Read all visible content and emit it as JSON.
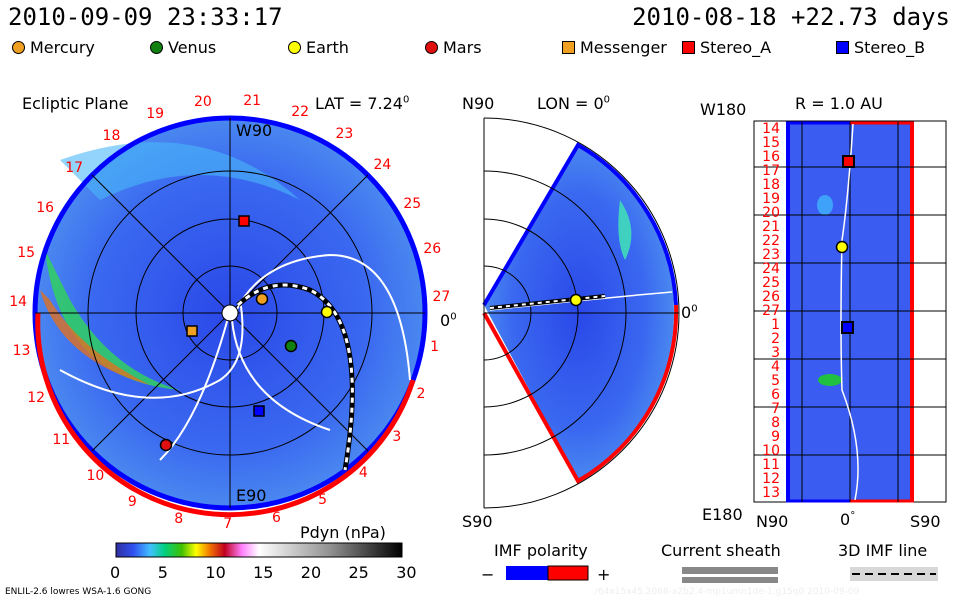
{
  "header": {
    "datetime": "2010-09-09 23:33:17",
    "reference": "2010-08-18 +22.73 days"
  },
  "legend": [
    {
      "label": "Mercury",
      "shape": "circle",
      "color": "#f0a020"
    },
    {
      "label": "Venus",
      "shape": "circle",
      "color": "#108010"
    },
    {
      "label": "Earth",
      "shape": "circle",
      "color": "#ffff00"
    },
    {
      "label": "Mars",
      "shape": "circle",
      "color": "#e01010"
    },
    {
      "label": "Messenger",
      "shape": "square",
      "color": "#f0a020"
    },
    {
      "label": "Stereo_A",
      "shape": "square",
      "color": "#ff0000"
    },
    {
      "label": "Stereo_B",
      "shape": "square",
      "color": "#0000ff"
    }
  ],
  "ecliptic": {
    "title": "Ecliptic Plane",
    "top_label": "W90",
    "bottom_label": "E90",
    "lat": "LAT = 7.24",
    "deg": "0",
    "right_label": "0",
    "rotations": [
      "27",
      "26",
      "25",
      "24",
      "23",
      "22",
      "21",
      "20",
      "19",
      "18",
      "17",
      "16",
      "15",
      "14",
      "13",
      "12",
      "11",
      "10",
      "9",
      "8",
      "7",
      "6",
      "5",
      "4",
      "3",
      "2",
      "1"
    ]
  },
  "meridional": {
    "top_label": "N90",
    "bottom_label": "S90",
    "lon": "LON = 0",
    "deg": "0",
    "right_label": "0"
  },
  "radial": {
    "title": "R = 1.0 AU",
    "top_label": "W180",
    "bottom_label": "E180",
    "x_labels": [
      "N90",
      "0",
      "S90"
    ],
    "rotations": [
      "14",
      "15",
      "16",
      "17",
      "18",
      "19",
      "20",
      "21",
      "22",
      "23",
      "24",
      "25",
      "26",
      "27",
      "1",
      "2",
      "3",
      "4",
      "5",
      "6",
      "7",
      "8",
      "9",
      "10",
      "11",
      "12",
      "13"
    ]
  },
  "colorbar": {
    "title": "Pdyn (nPa)",
    "ticks": [
      "0",
      "5",
      "10",
      "15",
      "20",
      "25",
      "30"
    ],
    "range": [
      0,
      30
    ]
  },
  "imf": {
    "title": "IMF polarity",
    "minus": "−",
    "plus": "+",
    "neg_color": "#0000ff",
    "pos_color": "#ff0000"
  },
  "sheath": {
    "title": "Current sheath"
  },
  "imfline": {
    "title": "3D IMF line"
  },
  "footer": {
    "model": "ENLIL-2.6 lowres WSA-1.6 GONG",
    "run": "./64x15x45.2068-a2b2.4-mp1umn1de-1.g15q0   2010-09-09"
  }
}
